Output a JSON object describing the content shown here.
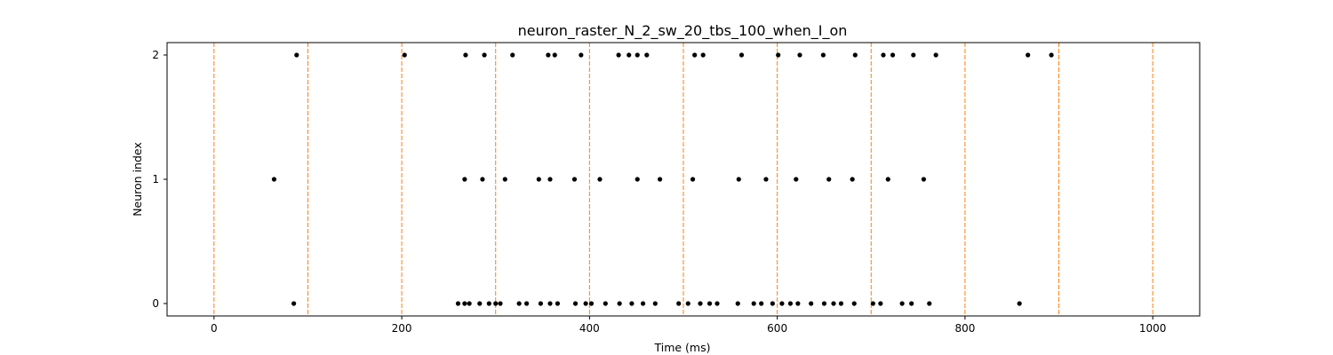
{
  "chart_data": {
    "type": "scatter",
    "title": "neuron_raster_N_2_sw_20_tbs_100_when_I_on",
    "xlabel": "Time (ms)",
    "ylabel": "Neuron index",
    "xlim": [
      -50,
      1050
    ],
    "ylim": [
      -0.1,
      2.1
    ],
    "x_ticks": [
      0,
      200,
      400,
      600,
      800,
      1000
    ],
    "y_ticks": [
      0,
      1,
      2
    ],
    "grid": false,
    "legend": "none",
    "marker_color": "#000000",
    "vline_color": "#ff7f0e",
    "vlines": [
      0,
      100,
      200,
      300,
      400,
      500,
      600,
      700,
      800,
      900,
      1000
    ],
    "spikes": {
      "0": [
        85,
        260,
        267,
        272,
        283,
        293,
        300,
        305,
        325,
        333,
        348,
        358,
        366,
        385,
        396,
        402,
        417,
        432,
        445,
        457,
        470,
        495,
        505,
        518,
        528,
        536,
        558,
        575,
        583,
        595,
        605,
        614,
        622,
        636,
        650,
        660,
        668,
        682,
        702,
        710,
        733,
        743,
        762,
        858
      ],
      "1": [
        64,
        267,
        286,
        310,
        346,
        358,
        384,
        411,
        451,
        475,
        510,
        559,
        588,
        620,
        655,
        680,
        718,
        756
      ],
      "2": [
        88,
        203,
        268,
        288,
        318,
        356,
        363,
        391,
        431,
        442,
        451,
        461,
        512,
        521,
        562,
        601,
        624,
        649,
        683,
        713,
        723,
        745,
        769,
        867,
        892
      ]
    }
  }
}
